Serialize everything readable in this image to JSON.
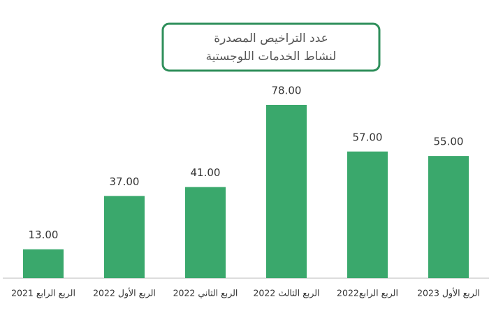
{
  "chart_data": {
    "type": "bar",
    "title": [
      "عدد التراخيص المصدرة",
      "لنشاط الخدمات اللوجستية"
    ],
    "categories": [
      "الربع الرابع 2021",
      "الربع الأول 2022",
      "الربع الثاني 2022",
      "الربع الثالث 2022",
      "الربع الرابع2022",
      "الربع الأول 2023"
    ],
    "values": [
      13,
      37,
      41,
      78,
      57,
      55
    ],
    "value_labels": [
      "13.00",
      "37.00",
      "41.00",
      "78.00",
      "57.00",
      "55.00"
    ],
    "color": "#3aa86c"
  }
}
